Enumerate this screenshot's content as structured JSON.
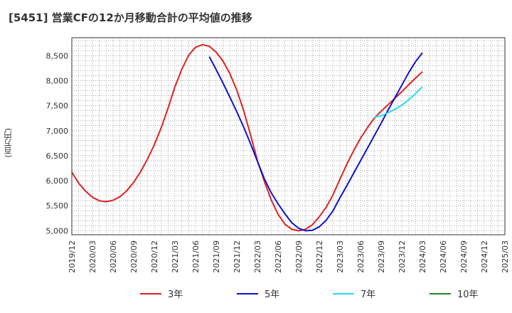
{
  "chart_data": {
    "type": "line",
    "title": "[5451]  営業CFの12か月移動合計の平均値の推移",
    "ylabel": "(百万円)",
    "ylim": [
      4920,
      8860
    ],
    "yticks": [
      5000,
      5500,
      6000,
      6500,
      7000,
      7500,
      8000,
      8500
    ],
    "ytick_labels": [
      "5,000",
      "5,500",
      "6,000",
      "6,500",
      "7,000",
      "7,500",
      "8,000",
      "8,500"
    ],
    "xlim": [
      "2019/12",
      "2025/03"
    ],
    "xtick_labels": [
      "2019/12",
      "2020/03",
      "2020/06",
      "2020/09",
      "2020/12",
      "2021/03",
      "2021/06",
      "2021/09",
      "2021/12",
      "2022/03",
      "2022/06",
      "2022/09",
      "2022/12",
      "2023/03",
      "2023/06",
      "2023/09",
      "2023/12",
      "2024/03",
      "2024/06",
      "2024/09",
      "2024/12",
      "2025/03"
    ],
    "grid": true,
    "legend_position": "bottom",
    "series": [
      {
        "name": "3年",
        "color": "#dd2222",
        "x": [
          "2019/12",
          "2020/01",
          "2020/02",
          "2020/03",
          "2020/04",
          "2020/05",
          "2020/06",
          "2020/07",
          "2020/08",
          "2020/09",
          "2020/10",
          "2020/11",
          "2020/12",
          "2021/01",
          "2021/02",
          "2021/03",
          "2021/04",
          "2021/05",
          "2021/06",
          "2021/07",
          "2021/08",
          "2021/09",
          "2021/10",
          "2021/11",
          "2021/12",
          "2022/01",
          "2022/02",
          "2022/03",
          "2022/04",
          "2022/05",
          "2022/06",
          "2022/07",
          "2022/08",
          "2022/09",
          "2022/10",
          "2022/11",
          "2022/12",
          "2023/01",
          "2023/02",
          "2023/03",
          "2023/04",
          "2023/05",
          "2023/06",
          "2023/07",
          "2023/08",
          "2023/09",
          "2023/10",
          "2023/11",
          "2023/12",
          "2024/01",
          "2024/02",
          "2024/03"
        ],
        "values": [
          6170,
          5950,
          5790,
          5670,
          5600,
          5580,
          5610,
          5680,
          5800,
          5970,
          6180,
          6430,
          6720,
          7060,
          7450,
          7880,
          8230,
          8510,
          8670,
          8720,
          8690,
          8570,
          8390,
          8140,
          7810,
          7400,
          6920,
          6400,
          5990,
          5620,
          5330,
          5130,
          5030,
          5000,
          5030,
          5120,
          5280,
          5470,
          5720,
          6030,
          6330,
          6600,
          6850,
          7060,
          7250,
          7390,
          7520,
          7650,
          7780,
          7920,
          8050,
          8180
        ]
      },
      {
        "name": "5年",
        "color": "#1111cc",
        "x": [
          "2021/08",
          "2021/09",
          "2021/10",
          "2021/11",
          "2021/12",
          "2022/01",
          "2022/02",
          "2022/03",
          "2022/04",
          "2022/05",
          "2022/06",
          "2022/07",
          "2022/08",
          "2022/09",
          "2022/10",
          "2022/11",
          "2022/12",
          "2023/01",
          "2023/02",
          "2023/03",
          "2023/04",
          "2023/05",
          "2023/06",
          "2023/07",
          "2023/08",
          "2023/09",
          "2023/10",
          "2023/11",
          "2023/12",
          "2024/01",
          "2024/02",
          "2024/03"
        ],
        "values": [
          8480,
          8220,
          7950,
          7670,
          7380,
          7070,
          6740,
          6390,
          6040,
          5760,
          5540,
          5340,
          5160,
          5050,
          5000,
          5010,
          5080,
          5210,
          5400,
          5660,
          5900,
          6150,
          6400,
          6650,
          6900,
          7150,
          7410,
          7660,
          7910,
          8160,
          8380,
          8560
        ]
      },
      {
        "name": "7年",
        "color": "#22ddee",
        "x": [
          "2023/08",
          "2023/09",
          "2023/10",
          "2023/11",
          "2023/12",
          "2024/01",
          "2024/02",
          "2024/03"
        ],
        "values": [
          7270,
          7300,
          7360,
          7430,
          7510,
          7620,
          7740,
          7880
        ]
      },
      {
        "name": "10年",
        "color": "#228822",
        "x": [],
        "values": []
      }
    ]
  }
}
